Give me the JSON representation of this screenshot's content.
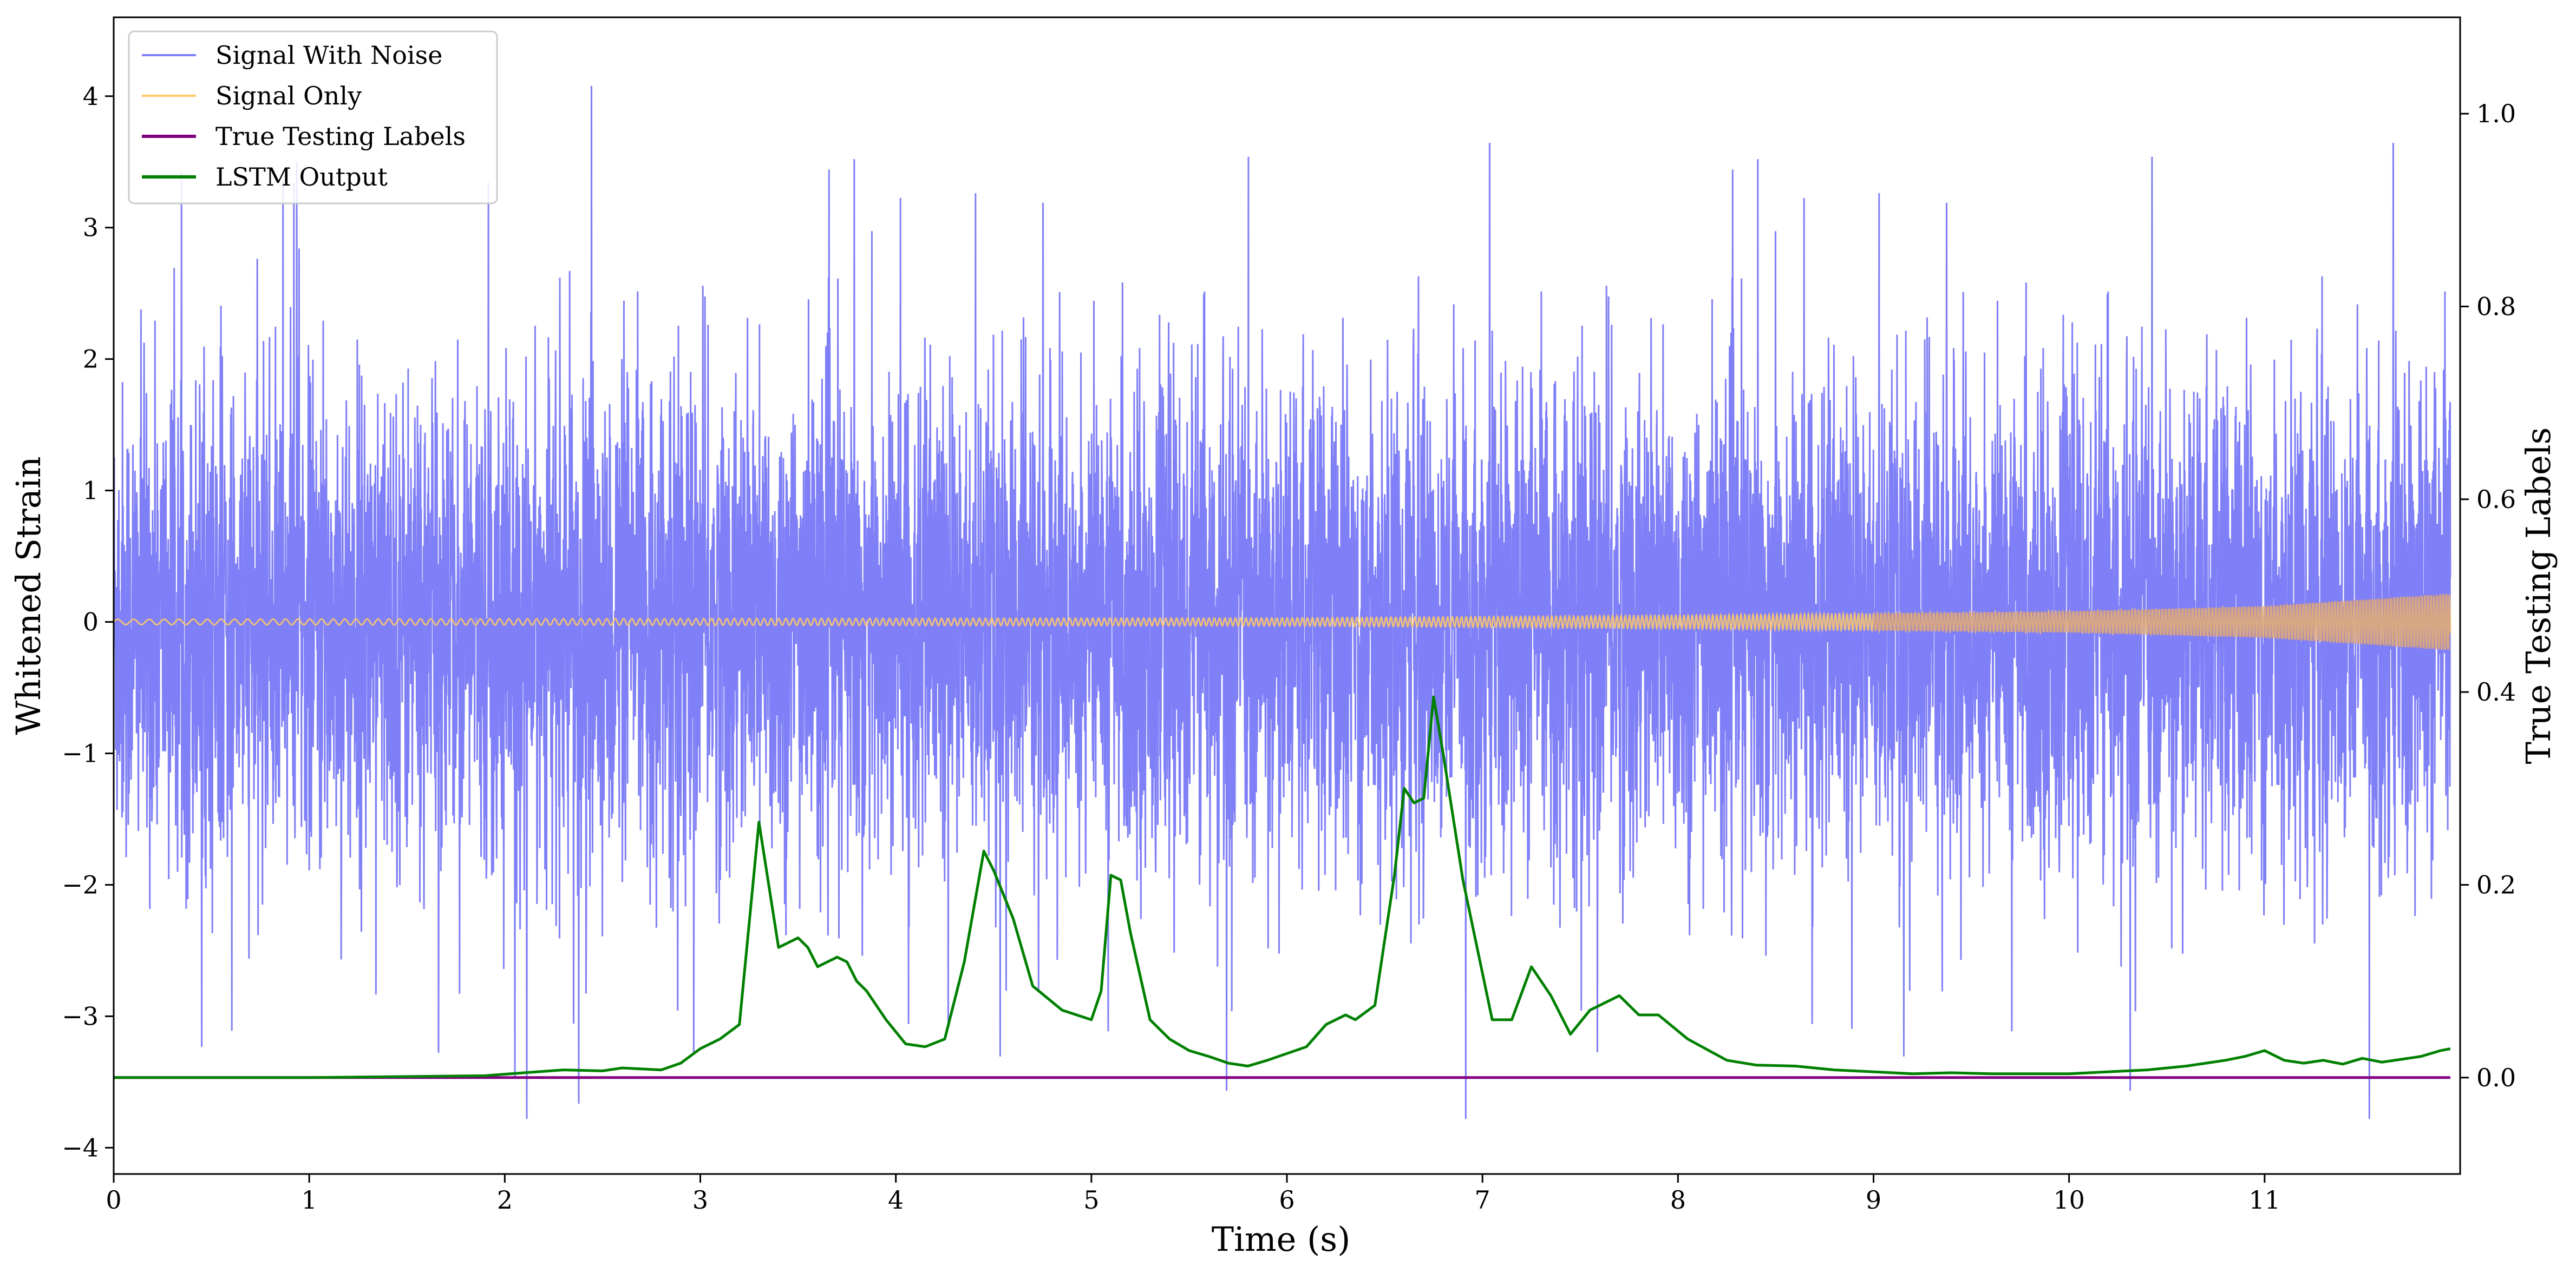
{
  "chart_data": {
    "type": "line",
    "xlabel": "Time (s)",
    "ylabel": "Whitened Strain",
    "ylabel_right": "True Testing Labels",
    "xlim": [
      0,
      12.0
    ],
    "ylim": [
      -4.2,
      4.6
    ],
    "ylim_right": [
      -0.1,
      1.1
    ],
    "x_ticks": [
      "0",
      "1",
      "2",
      "3",
      "4",
      "5",
      "6",
      "7",
      "8",
      "9",
      "10",
      "11"
    ],
    "y_ticks": [
      "−4",
      "−3",
      "−2",
      "−1",
      "0",
      "1",
      "2",
      "3",
      "4"
    ],
    "y_ticks_right": [
      "0.0",
      "0.2",
      "0.4",
      "0.6",
      "0.8",
      "1.0"
    ],
    "grid": false,
    "legend_placement": "upper-left",
    "legend": [
      {
        "label": "Signal With Noise",
        "color": "#7f7ff7"
      },
      {
        "label": "Signal Only",
        "color": "#ffc966"
      },
      {
        "label": "True Testing Labels",
        "color": "#800080"
      },
      {
        "label": "LSTM Output",
        "color": "#008000"
      }
    ],
    "series": [
      {
        "name": "Signal With Noise",
        "axis": "left",
        "color": "#7f7ff7",
        "description_values": {
          "mean": 0.0,
          "std": 0.9,
          "min": -3.78,
          "max": 4.27
        }
      },
      {
        "name": "Signal Only",
        "axis": "left",
        "color": "#ffc966",
        "envelope": {
          "x": [
            0,
            6,
            8,
            10,
            11,
            12
          ],
          "amplitude": [
            0.02,
            0.03,
            0.05,
            0.08,
            0.12,
            0.22
          ]
        }
      },
      {
        "name": "True Testing Labels",
        "axis": "right",
        "color": "#800080",
        "x": [
          0,
          11.95
        ],
        "y": [
          0.0,
          0.0
        ]
      },
      {
        "name": "LSTM Output",
        "axis": "right",
        "color": "#008000",
        "x": [
          0,
          1.0,
          1.9,
          2.1,
          2.3,
          2.5,
          2.6,
          2.8,
          2.9,
          3.0,
          3.1,
          3.2,
          3.3,
          3.4,
          3.5,
          3.55,
          3.6,
          3.7,
          3.75,
          3.8,
          3.85,
          3.95,
          4.05,
          4.15,
          4.25,
          4.35,
          4.45,
          4.5,
          4.6,
          4.7,
          4.85,
          5.0,
          5.05,
          5.1,
          5.15,
          5.2,
          5.3,
          5.4,
          5.5,
          5.6,
          5.7,
          5.8,
          5.9,
          6.0,
          6.1,
          6.2,
          6.3,
          6.35,
          6.45,
          6.55,
          6.6,
          6.65,
          6.7,
          6.75,
          6.8,
          6.9,
          7.05,
          7.15,
          7.25,
          7.35,
          7.45,
          7.55,
          7.7,
          7.8,
          7.9,
          8.05,
          8.25,
          8.4,
          8.6,
          8.8,
          9.0,
          9.2,
          9.4,
          9.6,
          9.8,
          10.0,
          10.2,
          10.4,
          10.6,
          10.7,
          10.8,
          10.9,
          11.0,
          11.1,
          11.2,
          11.3,
          11.4,
          11.5,
          11.6,
          11.7,
          11.8,
          11.9,
          11.95
        ],
        "y": [
          0.0,
          0.0,
          0.002,
          0.005,
          0.008,
          0.007,
          0.01,
          0.008,
          0.015,
          0.03,
          0.04,
          0.055,
          0.265,
          0.135,
          0.145,
          0.135,
          0.115,
          0.125,
          0.12,
          0.1,
          0.09,
          0.06,
          0.035,
          0.032,
          0.04,
          0.12,
          0.235,
          0.215,
          0.165,
          0.095,
          0.07,
          0.06,
          0.09,
          0.21,
          0.205,
          0.15,
          0.06,
          0.04,
          0.028,
          0.022,
          0.015,
          0.012,
          0.018,
          0.025,
          0.032,
          0.055,
          0.065,
          0.06,
          0.075,
          0.21,
          0.3,
          0.285,
          0.29,
          0.395,
          0.335,
          0.205,
          0.06,
          0.06,
          0.115,
          0.085,
          0.045,
          0.07,
          0.085,
          0.065,
          0.065,
          0.04,
          0.018,
          0.013,
          0.012,
          0.008,
          0.006,
          0.004,
          0.005,
          0.004,
          0.004,
          0.004,
          0.006,
          0.008,
          0.012,
          0.015,
          0.018,
          0.022,
          0.028,
          0.018,
          0.015,
          0.018,
          0.014,
          0.02,
          0.016,
          0.019,
          0.022,
          0.028,
          0.03
        ]
      }
    ]
  }
}
